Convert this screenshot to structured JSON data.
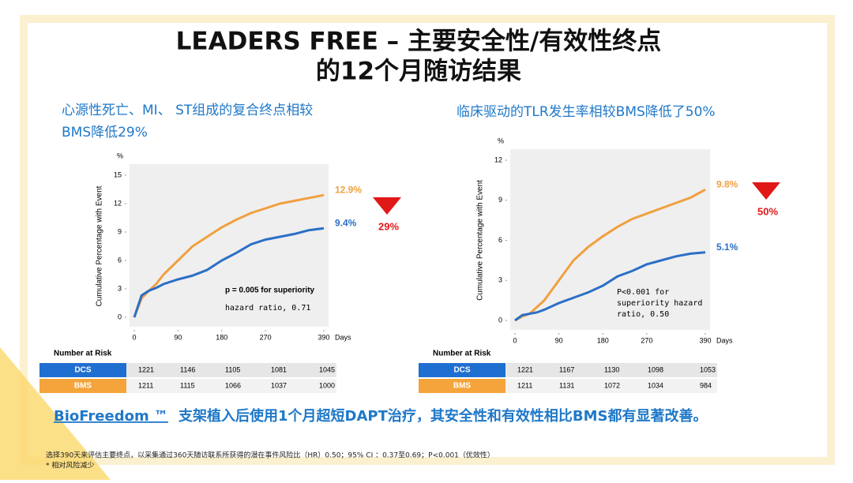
{
  "slide": {
    "title_line1": "LEADERS FREE – 主要安全性/有效性终点",
    "title_line2": "的12个月随访结果",
    "conclusion_brand": "BioFreedom ™",
    "conclusion": "支架植入后使用1个月超短DAPT治疗，其安全性和有效性相比BMS都有显著改善。",
    "footnote1": "选择390天来评估主要终点，以采集通过360天随访联系所获得的潜在事件风险比（HR）0.50；95% CI ：0.37至0.69；P<0.001（优效性）",
    "footnote2": "* 相对风险减少"
  },
  "chart_data": [
    {
      "type": "line",
      "subtitle_line1": "心源性死亡、MI、 ST组成的复合终点相较",
      "subtitle_line2": "BMS降低29%",
      "y_unit": "%",
      "y_label": "Cumulative Percentage with Event",
      "x_unit": "Days",
      "x": [
        0,
        15,
        30,
        45,
        60,
        90,
        120,
        150,
        180,
        210,
        240,
        270,
        300,
        330,
        360,
        390
      ],
      "series": [
        {
          "name": "BMS",
          "color": "#f0a040",
          "end_label": "12.9%",
          "values": [
            0,
            2,
            2.8,
            3.5,
            4.5,
            6,
            7.5,
            8.5,
            9.5,
            10.3,
            11,
            11.5,
            12,
            12.3,
            12.6,
            12.9
          ]
        },
        {
          "name": "DCS",
          "color": "#2b6fc6",
          "end_label": "9.4%",
          "values": [
            0,
            2.3,
            2.8,
            3.1,
            3.5,
            4,
            4.4,
            5,
            6,
            6.8,
            7.7,
            8.2,
            8.5,
            8.8,
            9.2,
            9.4
          ]
        }
      ],
      "xlim": [
        0,
        390
      ],
      "xticks": [
        0,
        90,
        180,
        270,
        390
      ],
      "ylim": [
        0,
        15
      ],
      "yticks": [
        0,
        3,
        6,
        9,
        12,
        15
      ],
      "reduction": "29%",
      "annotation_bold": "p = 0.005 for superiority",
      "annotation": "hazard ratio, 0.71",
      "risk_title": "Number at Risk",
      "risk_rows": [
        {
          "name": "DCS",
          "color": "#1f6fd0",
          "values": [
            "1221",
            "1146",
            "1105",
            "1081",
            "1045"
          ]
        },
        {
          "name": "BMS",
          "color": "#f4a43a",
          "values": [
            "1211",
            "1115",
            "1066",
            "1037",
            "1000"
          ]
        }
      ]
    },
    {
      "type": "line",
      "subtitle_line1": "临床驱动的TLR发生率相较BMS降低了50%",
      "y_unit": "%",
      "y_label": "Cumulative Percentage with Event",
      "x_unit": "Days",
      "x": [
        0,
        15,
        30,
        45,
        60,
        90,
        120,
        150,
        180,
        210,
        240,
        270,
        300,
        330,
        360,
        390
      ],
      "series": [
        {
          "name": "BMS",
          "color": "#f0a040",
          "end_label": "9.8%",
          "values": [
            0,
            0.3,
            0.5,
            1,
            1.5,
            3,
            4.5,
            5.5,
            6.3,
            7,
            7.6,
            8,
            8.4,
            8.8,
            9.2,
            9.8
          ]
        },
        {
          "name": "DCS",
          "color": "#2b6fc6",
          "end_label": "5.1%",
          "values": [
            0,
            0.4,
            0.5,
            0.6,
            0.8,
            1.3,
            1.7,
            2.1,
            2.6,
            3.3,
            3.7,
            4.2,
            4.5,
            4.8,
            5,
            5.1
          ]
        }
      ],
      "xlim": [
        0,
        390
      ],
      "xticks": [
        0,
        90,
        180,
        270,
        390
      ],
      "ylim": [
        0,
        12
      ],
      "yticks": [
        0,
        3,
        6,
        9,
        12
      ],
      "reduction": "50%",
      "annotation": "P<0.001 for superiority hazard ratio, 0.50",
      "risk_title": "Number at Risk",
      "risk_rows": [
        {
          "name": "DCS",
          "color": "#1f6fd0",
          "values": [
            "1221",
            "1167",
            "1130",
            "1098",
            "1053"
          ]
        },
        {
          "name": "BMS",
          "color": "#f4a43a",
          "values": [
            "1211",
            "1131",
            "1072",
            "1034",
            "984"
          ]
        }
      ]
    }
  ]
}
